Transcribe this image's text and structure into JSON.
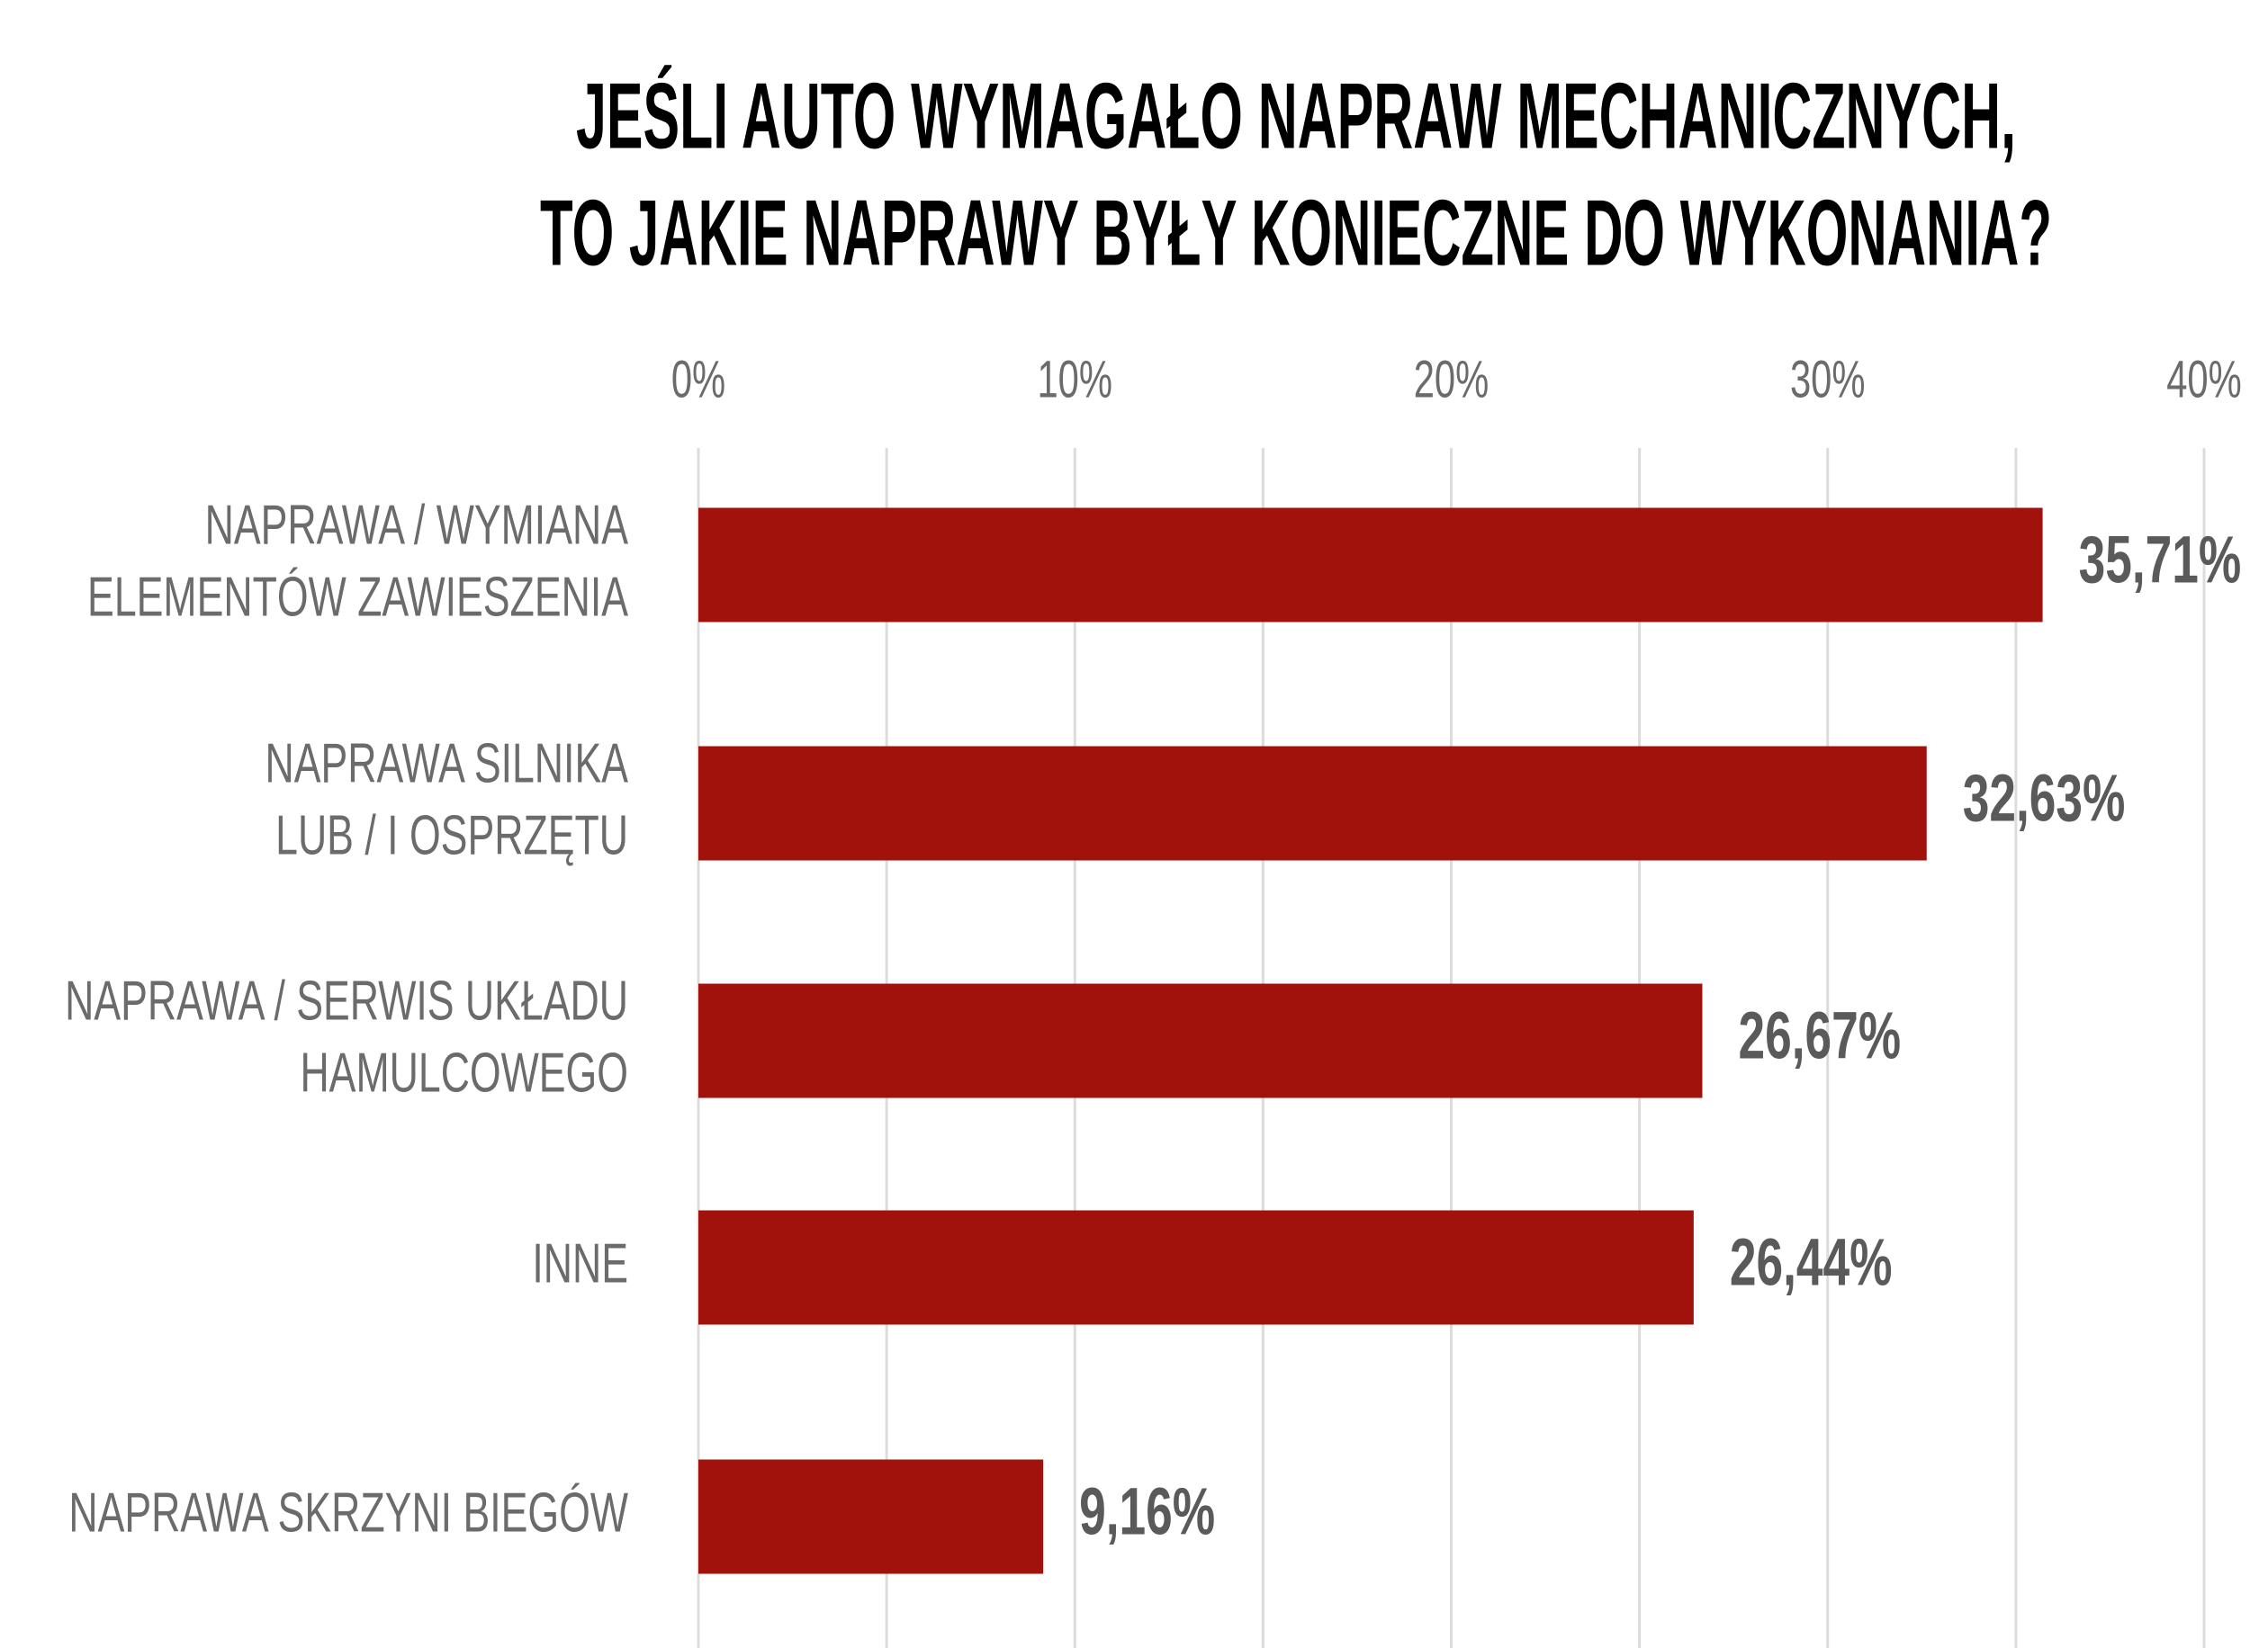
{
  "chart_data": {
    "type": "barh",
    "title": [
      "JEŚLI AUTO WYMAGAŁO NAPRAW MECHANICZNYCH,",
      "TO JAKIE NAPRAWY BYŁY KONIECZNE DO WYKONANIA?"
    ],
    "categories": [
      [
        "NAPRAWA / WYMIANA",
        "ELEMENTÓW ZAWIESZENIA"
      ],
      [
        "NAPRAWA SILNIKA",
        "LUB / I OSPRZĘTU"
      ],
      [
        "NAPRAWA / SERWIS UKŁADU",
        "HAMULCOWEGO"
      ],
      [
        "INNE"
      ],
      [
        "NAPRAWA SKRZYNI BIEGÓW"
      ]
    ],
    "values": [
      35.71,
      32.63,
      26.67,
      26.44,
      9.16
    ],
    "value_labels": [
      "35,71%",
      "32,63%",
      "26,67%",
      "26,44%",
      "9,16%"
    ],
    "color": "#a0120b",
    "xlim": [
      0,
      40
    ],
    "xticks": [
      {
        "value": 0,
        "label": "0%"
      },
      {
        "value": 10,
        "label": "10%"
      },
      {
        "value": 20,
        "label": "20%"
      },
      {
        "value": 30,
        "label": "30%"
      },
      {
        "value": 40,
        "label": "40%"
      }
    ],
    "grid": true
  }
}
